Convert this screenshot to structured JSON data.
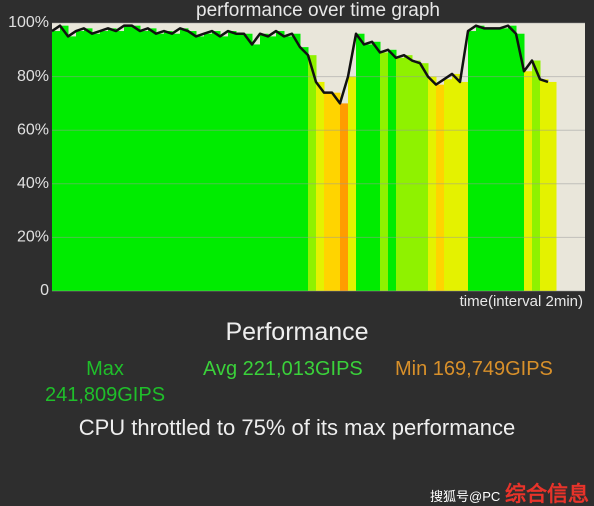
{
  "chart_data": {
    "type": "line",
    "title": "performance over time graph",
    "x_label": "time(interval 2min)",
    "series": [
      {
        "color": "#111111",
        "values": [
          97,
          99,
          95,
          97,
          98,
          96,
          97,
          98,
          97,
          99,
          99,
          97,
          98,
          96,
          97,
          96,
          98,
          97,
          95,
          96,
          97,
          95,
          97,
          96,
          96,
          92,
          96,
          95,
          97,
          95,
          96,
          91,
          88,
          78,
          74,
          74,
          70,
          80,
          96,
          92,
          93,
          89,
          90,
          87,
          88,
          86,
          85,
          80,
          77,
          79,
          81,
          78,
          97,
          99,
          98,
          98,
          98,
          99,
          96,
          82,
          86,
          79,
          78
        ]
      }
    ],
    "ylim": [
      0,
      100
    ],
    "yticks": [
      0,
      {
        "value": 20,
        "label": "20%"
      },
      {
        "value": 40,
        "label": "40%"
      },
      {
        "value": 60,
        "label": "60%"
      },
      {
        "value": 80,
        "label": "80%"
      },
      {
        "value": 100,
        "label": "100%"
      }
    ],
    "grid": true
  },
  "summary": {
    "title": "Performance",
    "max_label": "Max",
    "max": "241,809GIPS",
    "avg": "Avg 221,013GIPS",
    "min": "Min 169,749GIPS",
    "message": "CPU throttled to 75% of its max performance"
  },
  "watermark": {
    "source": "搜狐号@PC",
    "brand": "综合信息"
  }
}
